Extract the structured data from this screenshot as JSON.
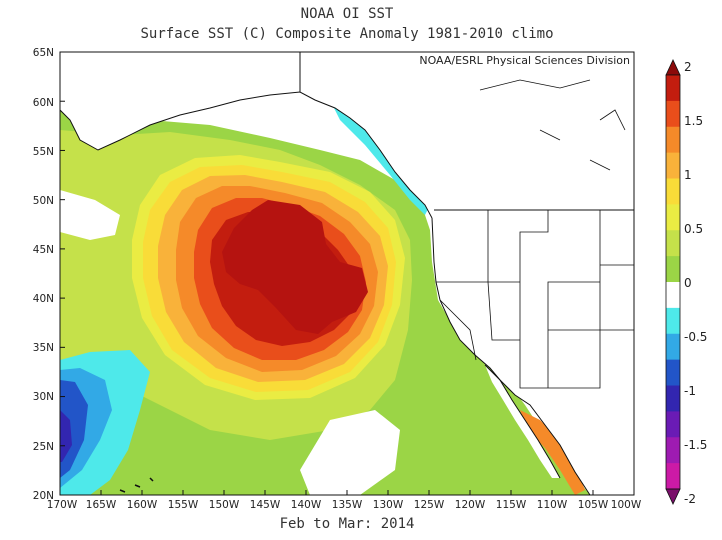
{
  "title_line1": "NOAA OI SST",
  "title_line2": "Surface SST (C) Composite Anomaly 1981-2010 climo",
  "credit": "NOAA/ESRL Physical Sciences Division",
  "date_range": "Feb to Mar: 2014",
  "map": {
    "lon_range": [
      -170,
      -100
    ],
    "lat_range": [
      20,
      65
    ],
    "lat_labels": [
      "20N",
      "25N",
      "30N",
      "35N",
      "40N",
      "45N",
      "50N",
      "55N",
      "60N",
      "65N"
    ],
    "lon_labels": [
      "170W",
      "165W",
      "160W",
      "155W",
      "150W",
      "145W",
      "140W",
      "135W",
      "130W",
      "125W",
      "120W",
      "115W",
      "110W",
      "105W",
      "100W"
    ]
  },
  "colorbar": {
    "labels": [
      "2",
      "1.5",
      "1",
      "0.5",
      "0",
      "-0.5",
      "-1",
      "-1.5",
      "-2"
    ],
    "colors": [
      "#8b0a0a",
      "#c31d0f",
      "#e94e1b",
      "#f58a29",
      "#f9b23a",
      "#f9dc38",
      "#eaec43",
      "#c5e14a",
      "#9bd546",
      "#ffffff",
      "#4ee9ea",
      "#32a9e6",
      "#2255c8",
      "#3226b0",
      "#6a1bb5",
      "#9e1bb2",
      "#cc1aa6",
      "#7a0f6a"
    ]
  }
}
